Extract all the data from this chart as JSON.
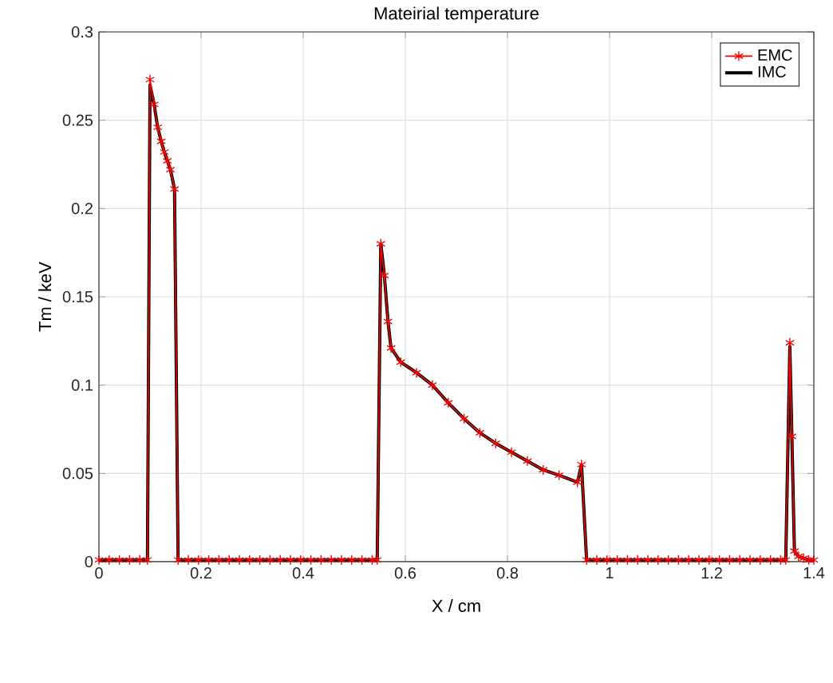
{
  "chart_data": {
    "type": "line",
    "title": "Mateirial temperature",
    "xlabel": "X / cm",
    "ylabel": "Tm / keV",
    "xlim": [
      0,
      1.4
    ],
    "ylim": [
      0,
      0.3
    ],
    "xticks": [
      0,
      0.2,
      0.4,
      0.6,
      0.8,
      1,
      1.2,
      1.4
    ],
    "yticks": [
      0,
      0.05,
      0.1,
      0.15,
      0.2,
      0.25,
      0.3
    ],
    "grid": true,
    "legend": "top right",
    "series": [
      {
        "name": "EMC",
        "color": "#ff0000",
        "marker": "cross",
        "x": [
          0,
          0.02,
          0.04,
          0.06,
          0.08,
          0.095,
          0.1,
          0.108,
          0.115,
          0.122,
          0.128,
          0.134,
          0.14,
          0.148,
          0.155,
          0.175,
          0.195,
          0.215,
          0.235,
          0.255,
          0.275,
          0.295,
          0.315,
          0.335,
          0.355,
          0.375,
          0.395,
          0.415,
          0.435,
          0.455,
          0.475,
          0.495,
          0.515,
          0.535,
          0.545,
          0.552,
          0.559,
          0.566,
          0.572,
          0.591,
          0.622,
          0.653,
          0.684,
          0.715,
          0.746,
          0.777,
          0.808,
          0.839,
          0.87,
          0.901,
          0.937,
          0.945,
          0.955,
          0.975,
          0.995,
          1.015,
          1.035,
          1.055,
          1.075,
          1.095,
          1.115,
          1.135,
          1.155,
          1.175,
          1.195,
          1.215,
          1.235,
          1.255,
          1.275,
          1.295,
          1.315,
          1.335,
          1.345,
          1.353,
          1.357,
          1.362,
          1.37,
          1.38,
          1.39,
          1.4
        ],
        "values": [
          0.001,
          0.001,
          0.001,
          0.001,
          0.001,
          0.001,
          0.273,
          0.259,
          0.246,
          0.238,
          0.232,
          0.227,
          0.222,
          0.211,
          0.001,
          0.001,
          0.001,
          0.001,
          0.001,
          0.001,
          0.001,
          0.001,
          0.001,
          0.001,
          0.001,
          0.001,
          0.001,
          0.001,
          0.001,
          0.001,
          0.001,
          0.001,
          0.001,
          0.001,
          0.001,
          0.18,
          0.162,
          0.136,
          0.121,
          0.113,
          0.107,
          0.1,
          0.09,
          0.081,
          0.073,
          0.067,
          0.062,
          0.057,
          0.052,
          0.049,
          0.045,
          0.055,
          0.001,
          0.001,
          0.001,
          0.001,
          0.001,
          0.001,
          0.001,
          0.001,
          0.001,
          0.001,
          0.001,
          0.001,
          0.001,
          0.001,
          0.001,
          0.001,
          0.001,
          0.001,
          0.001,
          0.001,
          0.001,
          0.124,
          0.071,
          0.006,
          0.003,
          0.002,
          0.001,
          0.001
        ]
      },
      {
        "name": "IMC",
        "color": "#000000",
        "marker": "none",
        "x": [
          0,
          0.02,
          0.04,
          0.06,
          0.08,
          0.095,
          0.1,
          0.108,
          0.115,
          0.122,
          0.128,
          0.134,
          0.14,
          0.148,
          0.155,
          0.175,
          0.195,
          0.215,
          0.235,
          0.255,
          0.275,
          0.295,
          0.315,
          0.335,
          0.355,
          0.375,
          0.395,
          0.415,
          0.435,
          0.455,
          0.475,
          0.495,
          0.515,
          0.535,
          0.545,
          0.552,
          0.559,
          0.566,
          0.572,
          0.591,
          0.622,
          0.653,
          0.684,
          0.715,
          0.746,
          0.777,
          0.808,
          0.839,
          0.87,
          0.901,
          0.937,
          0.945,
          0.955,
          0.975,
          0.995,
          1.015,
          1.035,
          1.055,
          1.075,
          1.095,
          1.115,
          1.135,
          1.155,
          1.175,
          1.195,
          1.215,
          1.235,
          1.255,
          1.275,
          1.295,
          1.315,
          1.335,
          1.345,
          1.353,
          1.357,
          1.362,
          1.37,
          1.38,
          1.39,
          1.4
        ],
        "values": [
          0.001,
          0.001,
          0.001,
          0.001,
          0.001,
          0.001,
          0.27,
          0.259,
          0.246,
          0.238,
          0.232,
          0.227,
          0.222,
          0.211,
          0.001,
          0.001,
          0.001,
          0.001,
          0.001,
          0.001,
          0.001,
          0.001,
          0.001,
          0.001,
          0.001,
          0.001,
          0.001,
          0.001,
          0.001,
          0.001,
          0.001,
          0.001,
          0.001,
          0.001,
          0.001,
          0.18,
          0.162,
          0.136,
          0.121,
          0.113,
          0.107,
          0.1,
          0.09,
          0.081,
          0.073,
          0.067,
          0.062,
          0.057,
          0.052,
          0.049,
          0.045,
          0.055,
          0.001,
          0.001,
          0.001,
          0.001,
          0.001,
          0.001,
          0.001,
          0.001,
          0.001,
          0.001,
          0.001,
          0.001,
          0.001,
          0.001,
          0.001,
          0.001,
          0.001,
          0.001,
          0.001,
          0.001,
          0.001,
          0.122,
          0.071,
          0.006,
          0.003,
          0.002,
          0.001,
          0.001
        ]
      }
    ]
  }
}
